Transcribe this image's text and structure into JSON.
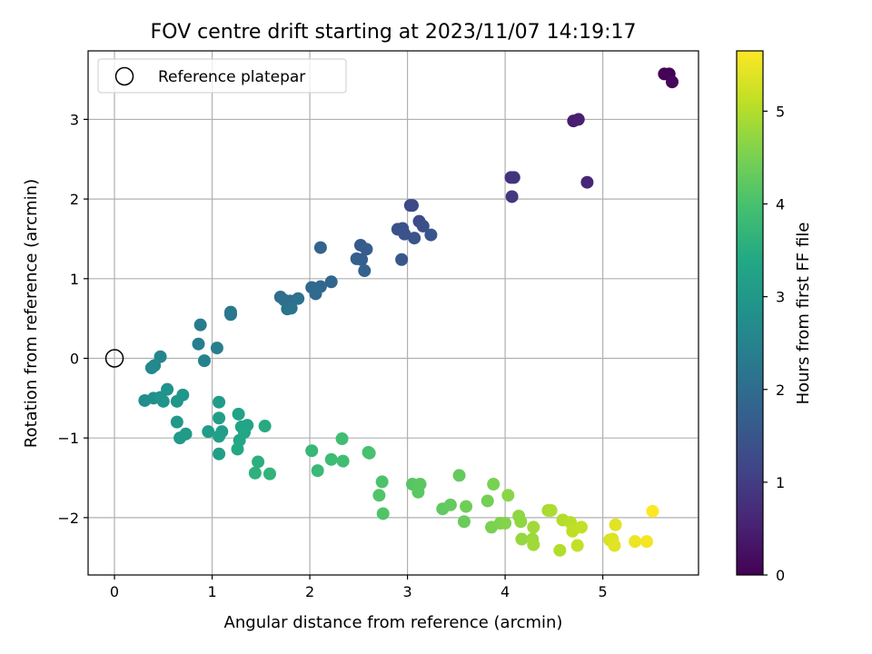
{
  "chart_data": {
    "type": "scatter",
    "title": "FOV centre drift starting at 2023/11/07 14:19:17",
    "xlabel": "Angular distance from reference (arcmin)",
    "ylabel": "Rotation from reference (arcmin)",
    "colorbar_label": "Hours from first FF file",
    "xlim": [
      -0.27,
      5.98
    ],
    "ylim": [
      -2.72,
      3.86
    ],
    "clim": [
      0,
      5.65
    ],
    "colormap": "viridis",
    "grid": true,
    "x_ticks": [
      {
        "v": 0,
        "label": "0"
      },
      {
        "v": 1,
        "label": "1"
      },
      {
        "v": 2,
        "label": "2"
      },
      {
        "v": 3,
        "label": "3"
      },
      {
        "v": 4,
        "label": "4"
      },
      {
        "v": 5,
        "label": "5"
      }
    ],
    "y_ticks": [
      {
        "v": -2,
        "label": "−2"
      },
      {
        "v": -1,
        "label": "−1"
      },
      {
        "v": 0,
        "label": "0"
      },
      {
        "v": 1,
        "label": "1"
      },
      {
        "v": 2,
        "label": "2"
      },
      {
        "v": 3,
        "label": "3"
      }
    ],
    "colorbar_ticks": [
      {
        "v": 0,
        "label": "0"
      },
      {
        "v": 1,
        "label": "1"
      },
      {
        "v": 2,
        "label": "2"
      },
      {
        "v": 3,
        "label": "3"
      },
      {
        "v": 4,
        "label": "4"
      },
      {
        "v": 5,
        "label": "5"
      }
    ],
    "legend": {
      "position": "upper left",
      "entries": [
        {
          "label": "Reference platepar",
          "marker": "open-circle"
        }
      ]
    },
    "reference_point": {
      "x": 0,
      "y": 0
    },
    "points": [
      {
        "x": 5.63,
        "y": 3.57,
        "t": 0.0
      },
      {
        "x": 5.68,
        "y": 3.57,
        "t": 0.05
      },
      {
        "x": 5.71,
        "y": 3.47,
        "t": 0.1
      },
      {
        "x": 4.7,
        "y": 2.98,
        "t": 0.45
      },
      {
        "x": 4.75,
        "y": 3.0,
        "t": 0.5
      },
      {
        "x": 4.84,
        "y": 2.21,
        "t": 0.6
      },
      {
        "x": 4.06,
        "y": 2.27,
        "t": 0.8
      },
      {
        "x": 4.09,
        "y": 2.27,
        "t": 0.85
      },
      {
        "x": 4.07,
        "y": 2.03,
        "t": 0.9
      },
      {
        "x": 3.03,
        "y": 1.92,
        "t": 1.2
      },
      {
        "x": 3.05,
        "y": 1.92,
        "t": 1.25
      },
      {
        "x": 3.12,
        "y": 1.72,
        "t": 1.3
      },
      {
        "x": 3.16,
        "y": 1.66,
        "t": 1.35
      },
      {
        "x": 2.9,
        "y": 1.62,
        "t": 1.4
      },
      {
        "x": 2.95,
        "y": 1.63,
        "t": 1.4
      },
      {
        "x": 2.97,
        "y": 1.56,
        "t": 1.45
      },
      {
        "x": 3.07,
        "y": 1.51,
        "t": 1.45
      },
      {
        "x": 3.24,
        "y": 1.55,
        "t": 1.5
      },
      {
        "x": 2.94,
        "y": 1.24,
        "t": 1.55
      },
      {
        "x": 2.52,
        "y": 1.42,
        "t": 1.6
      },
      {
        "x": 2.58,
        "y": 1.37,
        "t": 1.65
      },
      {
        "x": 2.48,
        "y": 1.25,
        "t": 1.7
      },
      {
        "x": 2.53,
        "y": 1.24,
        "t": 1.7
      },
      {
        "x": 2.56,
        "y": 1.1,
        "t": 1.75
      },
      {
        "x": 2.11,
        "y": 1.39,
        "t": 1.8
      },
      {
        "x": 2.22,
        "y": 0.96,
        "t": 1.85
      },
      {
        "x": 2.11,
        "y": 0.9,
        "t": 1.9
      },
      {
        "x": 2.02,
        "y": 0.89,
        "t": 1.9
      },
      {
        "x": 2.06,
        "y": 0.81,
        "t": 1.95
      },
      {
        "x": 1.7,
        "y": 0.77,
        "t": 2.0
      },
      {
        "x": 1.74,
        "y": 0.73,
        "t": 2.05
      },
      {
        "x": 1.8,
        "y": 0.72,
        "t": 2.05
      },
      {
        "x": 1.88,
        "y": 0.75,
        "t": 2.1
      },
      {
        "x": 1.77,
        "y": 0.62,
        "t": 2.1
      },
      {
        "x": 1.81,
        "y": 0.63,
        "t": 2.15
      },
      {
        "x": 1.19,
        "y": 0.58,
        "t": 2.25
      },
      {
        "x": 1.19,
        "y": 0.55,
        "t": 2.25
      },
      {
        "x": 0.88,
        "y": 0.42,
        "t": 2.35
      },
      {
        "x": 0.86,
        "y": 0.18,
        "t": 2.4
      },
      {
        "x": 1.05,
        "y": 0.13,
        "t": 2.4
      },
      {
        "x": 0.92,
        "y": -0.03,
        "t": 2.5
      },
      {
        "x": 0.47,
        "y": 0.02,
        "t": 2.55
      },
      {
        "x": 0.38,
        "y": -0.12,
        "t": 2.65
      },
      {
        "x": 0.41,
        "y": -0.09,
        "t": 2.65
      },
      {
        "x": 0.31,
        "y": -0.53,
        "t": 2.75
      },
      {
        "x": 0.4,
        "y": -0.5,
        "t": 2.8
      },
      {
        "x": 0.47,
        "y": -0.49,
        "t": 2.85
      },
      {
        "x": 0.54,
        "y": -0.39,
        "t": 2.85
      },
      {
        "x": 0.5,
        "y": -0.54,
        "t": 2.9
      },
      {
        "x": 0.64,
        "y": -0.54,
        "t": 2.95
      },
      {
        "x": 0.7,
        "y": -0.46,
        "t": 2.95
      },
      {
        "x": 0.64,
        "y": -0.8,
        "t": 3.0
      },
      {
        "x": 0.73,
        "y": -0.95,
        "t": 3.05
      },
      {
        "x": 0.67,
        "y": -1.0,
        "t": 3.05
      },
      {
        "x": 0.96,
        "y": -0.92,
        "t": 3.1
      },
      {
        "x": 1.07,
        "y": -0.55,
        "t": 3.1
      },
      {
        "x": 1.07,
        "y": -0.75,
        "t": 3.15
      },
      {
        "x": 1.1,
        "y": -0.92,
        "t": 3.15
      },
      {
        "x": 1.07,
        "y": -0.98,
        "t": 3.2
      },
      {
        "x": 1.07,
        "y": -1.2,
        "t": 3.2
      },
      {
        "x": 1.27,
        "y": -0.7,
        "t": 3.25
      },
      {
        "x": 1.3,
        "y": -0.86,
        "t": 3.3
      },
      {
        "x": 1.36,
        "y": -0.84,
        "t": 3.3
      },
      {
        "x": 1.33,
        "y": -0.93,
        "t": 3.35
      },
      {
        "x": 1.28,
        "y": -1.03,
        "t": 3.35
      },
      {
        "x": 1.26,
        "y": -1.14,
        "t": 3.4
      },
      {
        "x": 1.54,
        "y": -0.85,
        "t": 3.45
      },
      {
        "x": 1.47,
        "y": -1.3,
        "t": 3.55
      },
      {
        "x": 1.44,
        "y": -1.44,
        "t": 3.6
      },
      {
        "x": 1.59,
        "y": -1.45,
        "t": 3.65
      },
      {
        "x": 2.02,
        "y": -1.16,
        "t": 3.75
      },
      {
        "x": 2.08,
        "y": -1.41,
        "t": 3.8
      },
      {
        "x": 2.22,
        "y": -1.27,
        "t": 3.85
      },
      {
        "x": 2.33,
        "y": -1.01,
        "t": 3.9
      },
      {
        "x": 2.34,
        "y": -1.29,
        "t": 3.9
      },
      {
        "x": 2.6,
        "y": -1.18,
        "t": 3.95
      },
      {
        "x": 2.61,
        "y": -1.19,
        "t": 4.0
      },
      {
        "x": 2.74,
        "y": -1.55,
        "t": 4.05
      },
      {
        "x": 2.71,
        "y": -1.72,
        "t": 4.1
      },
      {
        "x": 2.75,
        "y": -1.95,
        "t": 4.1
      },
      {
        "x": 3.05,
        "y": -1.58,
        "t": 4.15
      },
      {
        "x": 3.13,
        "y": -1.58,
        "t": 4.2
      },
      {
        "x": 3.11,
        "y": -1.68,
        "t": 4.2
      },
      {
        "x": 3.36,
        "y": -1.89,
        "t": 4.25
      },
      {
        "x": 3.44,
        "y": -1.84,
        "t": 4.3
      },
      {
        "x": 3.53,
        "y": -1.47,
        "t": 4.3
      },
      {
        "x": 3.58,
        "y": -2.05,
        "t": 4.35
      },
      {
        "x": 3.6,
        "y": -1.86,
        "t": 4.4
      },
      {
        "x": 3.82,
        "y": -1.79,
        "t": 4.45
      },
      {
        "x": 3.88,
        "y": -1.58,
        "t": 4.5
      },
      {
        "x": 3.86,
        "y": -2.12,
        "t": 4.5
      },
      {
        "x": 3.95,
        "y": -2.07,
        "t": 4.55
      },
      {
        "x": 4.0,
        "y": -2.07,
        "t": 4.6
      },
      {
        "x": 4.03,
        "y": -1.72,
        "t": 4.65
      },
      {
        "x": 4.14,
        "y": -1.98,
        "t": 4.7
      },
      {
        "x": 4.16,
        "y": -2.05,
        "t": 4.7
      },
      {
        "x": 4.17,
        "y": -2.27,
        "t": 4.75
      },
      {
        "x": 4.28,
        "y": -2.27,
        "t": 4.8
      },
      {
        "x": 4.29,
        "y": -2.34,
        "t": 4.85
      },
      {
        "x": 4.29,
        "y": -2.12,
        "t": 4.85
      },
      {
        "x": 4.44,
        "y": -1.91,
        "t": 4.9
      },
      {
        "x": 4.47,
        "y": -1.91,
        "t": 4.95
      },
      {
        "x": 4.56,
        "y": -2.41,
        "t": 5.0
      },
      {
        "x": 4.59,
        "y": -2.03,
        "t": 5.0
      },
      {
        "x": 4.67,
        "y": -2.06,
        "t": 5.05
      },
      {
        "x": 4.69,
        "y": -2.17,
        "t": 5.1
      },
      {
        "x": 4.74,
        "y": -2.35,
        "t": 5.15
      },
      {
        "x": 4.78,
        "y": -2.12,
        "t": 5.15
      },
      {
        "x": 5.07,
        "y": -2.28,
        "t": 5.3
      },
      {
        "x": 5.1,
        "y": -2.27,
        "t": 5.35
      },
      {
        "x": 5.12,
        "y": -2.35,
        "t": 5.4
      },
      {
        "x": 5.13,
        "y": -2.09,
        "t": 5.4
      },
      {
        "x": 5.33,
        "y": -2.3,
        "t": 5.5
      },
      {
        "x": 5.45,
        "y": -2.3,
        "t": 5.55
      },
      {
        "x": 5.51,
        "y": -1.92,
        "t": 5.65
      }
    ]
  }
}
